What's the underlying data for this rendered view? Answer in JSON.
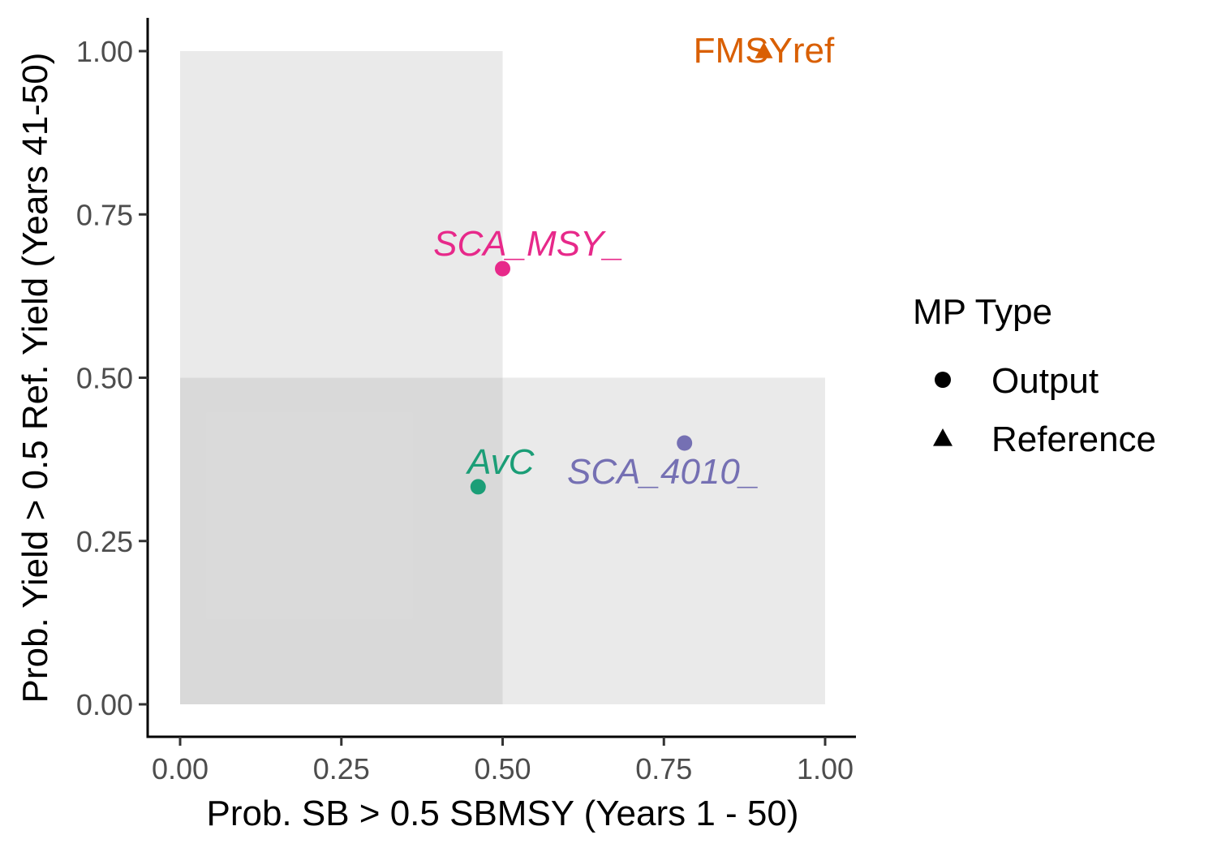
{
  "chart_data": {
    "type": "scatter",
    "xlabel": "Prob. SB > 0.5 SBMSY (Years 1 - 50)",
    "ylabel": "Prob. Yield > 0.5 Ref. Yield (Years 41-50)",
    "xlim": [
      0,
      1
    ],
    "ylim": [
      0,
      1
    ],
    "x_ticks": [
      "0.00",
      "0.25",
      "0.50",
      "0.75",
      "1.00"
    ],
    "y_ticks": [
      "0.00",
      "0.25",
      "0.50",
      "0.75",
      "1.00"
    ],
    "grid": false,
    "shaded_regions": [
      {
        "x": [
          0,
          0.5
        ],
        "y": [
          0,
          1
        ]
      },
      {
        "x": [
          0,
          1
        ],
        "y": [
          0,
          0.5
        ]
      }
    ],
    "points": [
      {
        "label": "FMSYref",
        "x": 0.905,
        "y": 1.0,
        "type": "Reference",
        "color": "#D95F02",
        "italic": false
      },
      {
        "label": "SCA_MSY_",
        "x": 0.5,
        "y": 0.667,
        "type": "Output",
        "color": "#E7298A",
        "italic": true
      },
      {
        "label": "AvC",
        "x": 0.462,
        "y": 0.333,
        "type": "Output",
        "color": "#1B9E77",
        "italic": true
      },
      {
        "label": "SCA_4010_",
        "x": 0.782,
        "y": 0.4,
        "type": "Output",
        "color": "#7570B3",
        "italic": true
      }
    ],
    "legend": {
      "title": "MP Type",
      "placement": "right",
      "entries": [
        {
          "label": "Output",
          "shape": "circle"
        },
        {
          "label": "Reference",
          "shape": "triangle"
        }
      ]
    }
  }
}
